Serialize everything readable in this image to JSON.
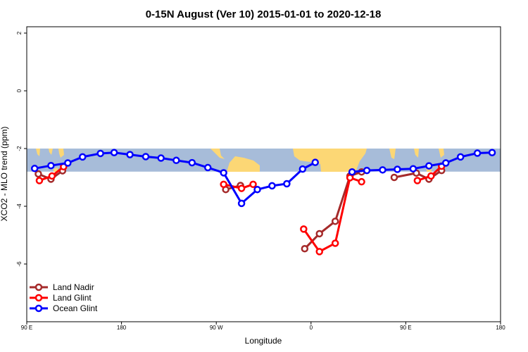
{
  "chart_data": {
    "type": "line",
    "title": "0-15N August (Ver 10)   2015-01-01 to 2020-12-18",
    "xlabel": "Longitude",
    "ylabel": "XCO2 - MLO trend (ppm)",
    "x_units_note": "unwrapped degrees east starting at 90E",
    "xlim": [
      90,
      540
    ],
    "ylim": [
      -7.8,
      2.2
    ],
    "x_ticks": [
      {
        "value": 90,
        "label": "90 E"
      },
      {
        "value": 180,
        "label": "180"
      },
      {
        "value": 270,
        "label": "90 W"
      },
      {
        "value": 360,
        "label": "0"
      },
      {
        "value": 450,
        "label": "90 E"
      },
      {
        "value": 540,
        "label": "180"
      }
    ],
    "y_ticks": [
      {
        "value": 2,
        "label": "2"
      },
      {
        "value": 0,
        "label": "0"
      },
      {
        "value": -2,
        "label": "-2"
      },
      {
        "value": -4,
        "label": "-4"
      },
      {
        "value": -6,
        "label": "-6"
      }
    ],
    "map_band": {
      "ymin": -2.8,
      "ymax": -2.0,
      "ocean_color": "#a7bcd9",
      "land_color": "#fcd775"
    },
    "legend_position": "bottom-left",
    "series": [
      {
        "name": "Land Nadir",
        "color": "#a52a2a",
        "segments": [
          [
            [
              101,
              -2.88
            ],
            [
              113,
              -3.06
            ],
            [
              124,
              -2.77
            ]
          ],
          [
            [
              279,
              -3.42
            ],
            [
              293,
              -3.28
            ]
          ],
          [
            [
              354,
              -5.47
            ],
            [
              368,
              -4.95
            ],
            [
              383,
              -4.52
            ],
            [
              397,
              -2.95
            ],
            [
              408,
              -2.81
            ]
          ],
          [
            [
              439,
              -3.0
            ],
            [
              460,
              -2.85
            ],
            [
              472,
              -3.06
            ],
            [
              484,
              -2.76
            ]
          ]
        ]
      },
      {
        "name": "Land Glint",
        "color": "#ff0000",
        "segments": [
          [
            [
              102,
              -3.11
            ],
            [
              114,
              -2.95
            ],
            [
              125,
              -2.63
            ]
          ],
          [
            [
              277,
              -3.24
            ],
            [
              294,
              -3.38
            ],
            [
              305,
              -3.24
            ]
          ],
          [
            [
              353,
              -4.79
            ],
            [
              368,
              -5.57
            ],
            [
              383,
              -5.28
            ],
            [
              397,
              -3.01
            ],
            [
              408,
              -3.15
            ]
          ],
          [
            [
              461,
              -3.11
            ],
            [
              474,
              -2.95
            ],
            [
              484,
              -2.61
            ]
          ]
        ]
      },
      {
        "name": "Ocean Glint",
        "color": "#0000ff",
        "segments": [
          [
            [
              97.5,
              -2.69
            ],
            [
              113,
              -2.59
            ],
            [
              129,
              -2.5
            ],
            [
              143,
              -2.29
            ],
            [
              160,
              -2.17
            ],
            [
              173,
              -2.14
            ],
            [
              188,
              -2.21
            ],
            [
              203,
              -2.28
            ],
            [
              217.5,
              -2.33
            ],
            [
              232,
              -2.41
            ],
            [
              247,
              -2.49
            ],
            [
              262,
              -2.66
            ],
            [
              277,
              -2.84
            ],
            [
              294,
              -3.9
            ],
            [
              309,
              -3.42
            ],
            [
              323,
              -3.29
            ],
            [
              337,
              -3.22
            ],
            [
              352,
              -2.71
            ],
            [
              364,
              -2.48
            ]
          ],
          [
            [
              399,
              -2.81
            ],
            [
              413,
              -2.76
            ],
            [
              428,
              -2.74
            ],
            [
              442,
              -2.72
            ],
            [
              457,
              -2.7
            ],
            [
              472,
              -2.6
            ],
            [
              488,
              -2.5
            ],
            [
              502,
              -2.29
            ],
            [
              518,
              -2.16
            ],
            [
              532,
              -2.14
            ]
          ]
        ]
      }
    ]
  }
}
